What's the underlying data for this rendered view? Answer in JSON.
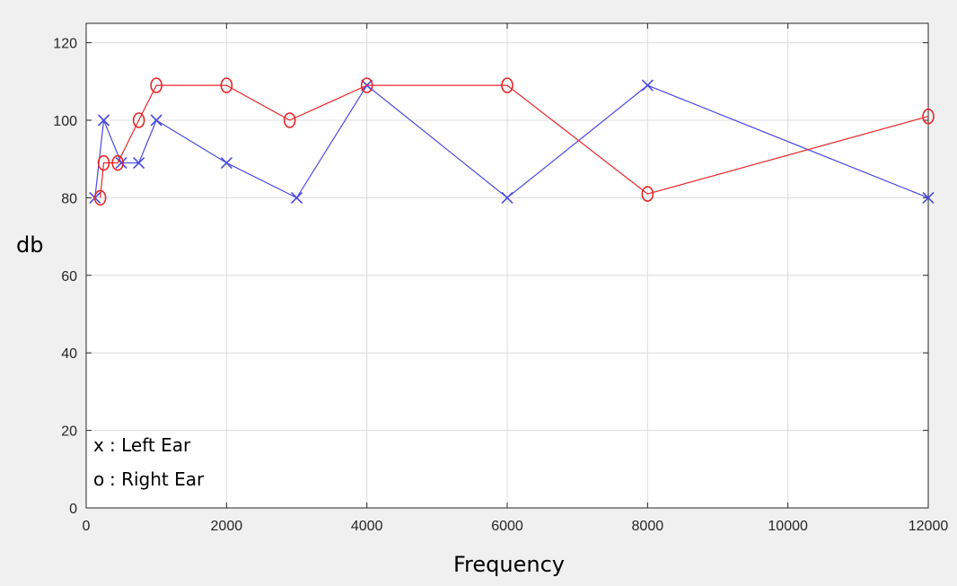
{
  "colors": {
    "left_ear": "#4a4adf",
    "right_ear": "#e8262a",
    "grid": "#dcdcdc",
    "axis": "#262626",
    "plot_bg": "#ffffff",
    "figure_bg": "#f0f0f0"
  },
  "legend": {
    "left_marker": "x",
    "left_label": ": Left Ear",
    "right_marker": "o",
    "right_label": ": Right Ear"
  },
  "chart_data": {
    "type": "line",
    "title": "",
    "xlabel": "Frequency",
    "ylabel": "db",
    "xlim": [
      0,
      12000
    ],
    "ylim": [
      0,
      125
    ],
    "xticks": [
      "0",
      "2000",
      "4000",
      "6000",
      "8000",
      "10000",
      "12000"
    ],
    "yticks": [
      "0",
      "20",
      "40",
      "60",
      "80",
      "100",
      "120"
    ],
    "grid": true,
    "legend_position": "bottom-left",
    "series": [
      {
        "name": "Left Ear",
        "marker": "x",
        "color": "#4a4adf",
        "points": [
          [
            125,
            80
          ],
          [
            250,
            100
          ],
          [
            500,
            89
          ],
          [
            750,
            89
          ],
          [
            1000,
            100
          ],
          [
            2000,
            89
          ],
          [
            3000,
            80
          ],
          [
            4000,
            109
          ],
          [
            6000,
            80
          ],
          [
            8000,
            109
          ],
          [
            12000,
            80
          ]
        ]
      },
      {
        "name": "Right Ear",
        "marker": "o",
        "color": "#e8262a",
        "points": [
          [
            200,
            80
          ],
          [
            250,
            89
          ],
          [
            450,
            89
          ],
          [
            750,
            100
          ],
          [
            1000,
            109
          ],
          [
            2000,
            109
          ],
          [
            2900,
            100
          ],
          [
            4000,
            109
          ],
          [
            6000,
            109
          ],
          [
            8000,
            81
          ],
          [
            12000,
            101
          ]
        ]
      }
    ]
  }
}
